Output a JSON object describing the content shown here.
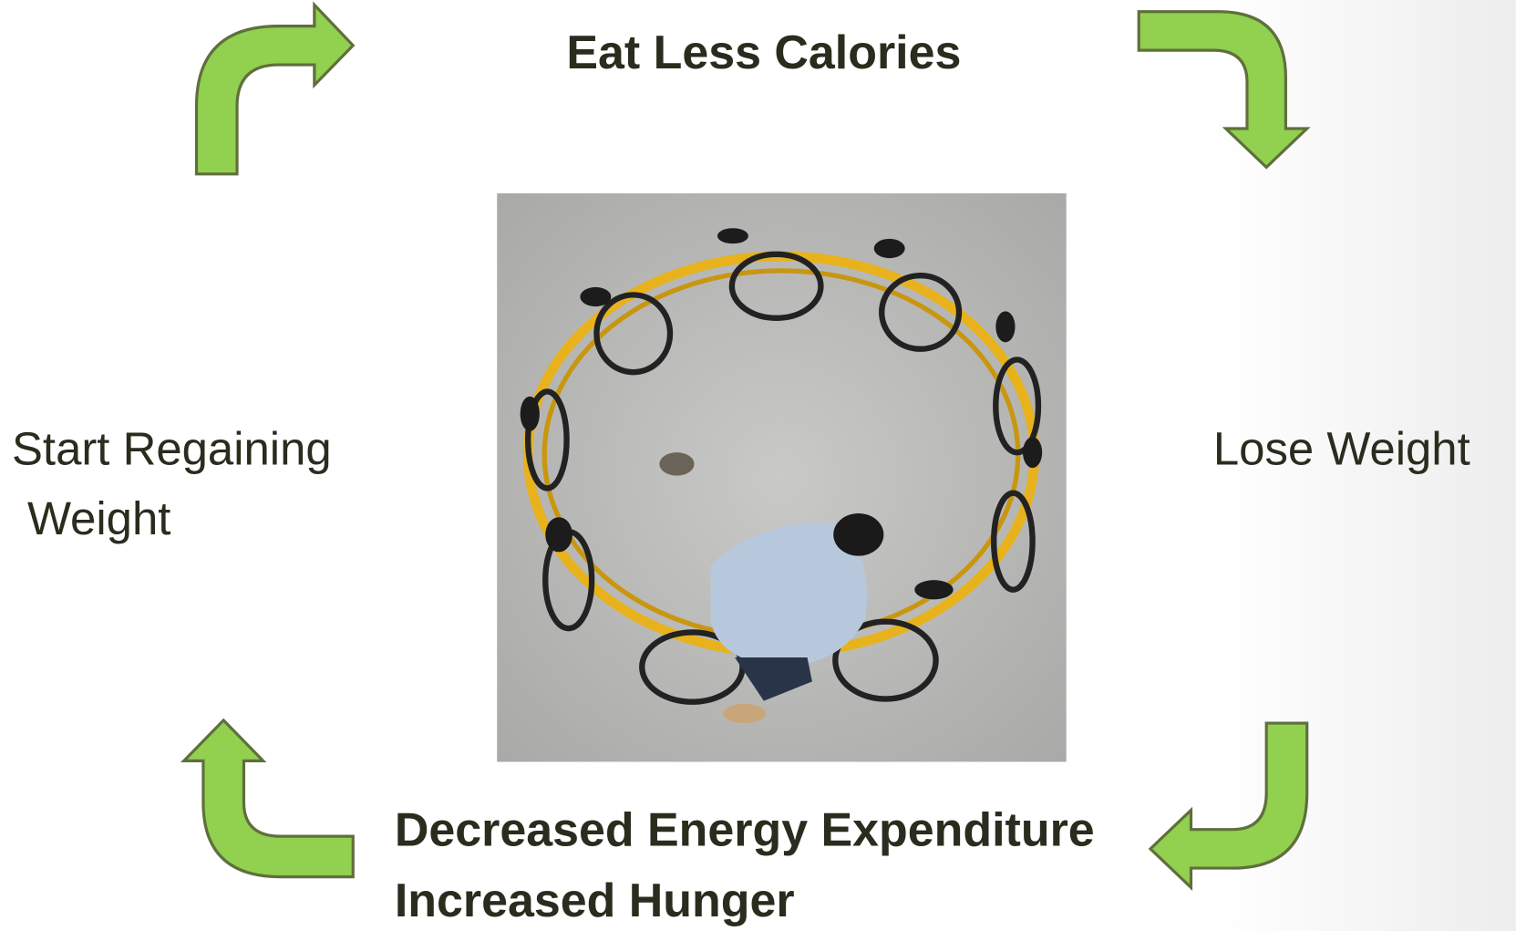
{
  "nodes": [
    {
      "lines": [
        "Eat Less Calories"
      ]
    },
    {
      "lines": [
        "Lose Weight"
      ]
    },
    {
      "lines": [
        "Decreased Energy Expenditure",
        "Increased Hunger"
      ]
    },
    {
      "lines": [
        "Start Regaining",
        "Weight"
      ]
    }
  ]
}
